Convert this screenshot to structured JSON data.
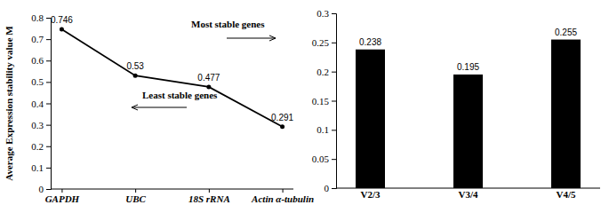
{
  "chart_data": [
    {
      "type": "line",
      "y_label": "Average Expression stability value M",
      "annotations": [
        "Most stable genes",
        "Least stable genes"
      ],
      "categories": [
        "GAPDH",
        "UBC",
        "18S rRNA",
        "Actin α-tubulin"
      ],
      "values": [
        0.746,
        0.53,
        0.477,
        0.291
      ],
      "color": "#000000",
      "marker": "circle",
      "data_labels": true,
      "ylim": [
        0,
        0.8
      ],
      "yticks": [
        0,
        0.1,
        0.2,
        0.3,
        0.4,
        0.5,
        0.6,
        0.7,
        0.8
      ]
    },
    {
      "type": "bar",
      "categories": [
        "V2/3",
        "V3/4",
        "V4/5"
      ],
      "values": [
        0.238,
        0.195,
        0.255
      ],
      "color": "#000000",
      "data_labels": true,
      "ylim": [
        0,
        0.3
      ],
      "yticks": [
        0,
        0.05,
        0.1,
        0.15,
        0.2,
        0.25,
        0.3
      ]
    }
  ]
}
